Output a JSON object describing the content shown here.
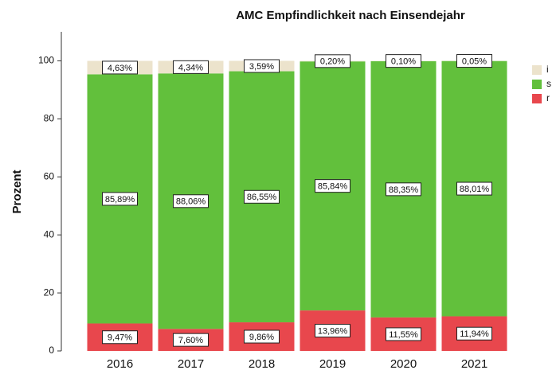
{
  "chart_data": {
    "type": "stacked_bar",
    "title": "AMC Empfindlichkeit nach Einsendejahr",
    "y_label": "Prozent",
    "categories": [
      "2016",
      "2017",
      "2018",
      "2019",
      "2020",
      "2021"
    ],
    "series": [
      {
        "name": "r",
        "color": "#e8474d",
        "values": [
          9.47,
          7.6,
          9.86,
          13.96,
          11.55,
          11.94
        ],
        "value_labels": [
          "9,47%",
          "7,60%",
          "9,86%",
          "13,96%",
          "11,55%",
          "11,94%"
        ]
      },
      {
        "name": "s",
        "color": "#62c03c",
        "values": [
          85.89,
          88.06,
          86.55,
          85.84,
          88.35,
          88.01
        ],
        "value_labels": [
          "85,89%",
          "88,06%",
          "86,55%",
          "85,84%",
          "88,35%",
          "88,01%"
        ]
      },
      {
        "name": "i",
        "color": "#ece3cc",
        "values": [
          4.63,
          4.34,
          3.59,
          0.2,
          0.1,
          0.05
        ],
        "value_labels": [
          "4,63%",
          "4,34%",
          "3,59%",
          "0,20%",
          "0,10%",
          "0,05%"
        ]
      }
    ],
    "ylim": [
      0,
      110
    ],
    "yticks": [
      0,
      20,
      40,
      60,
      80,
      100
    ],
    "grid": false,
    "legend": "top-right"
  }
}
